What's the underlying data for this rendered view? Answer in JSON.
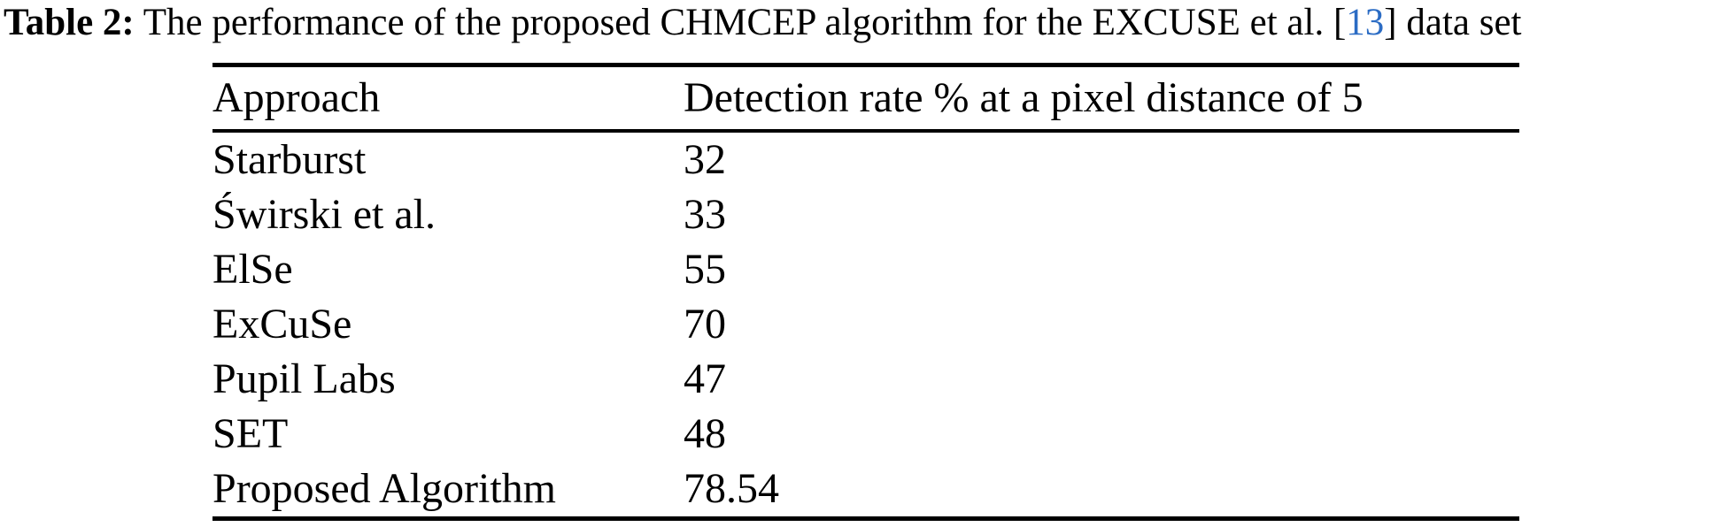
{
  "colors": {
    "background": "#ffffff",
    "text": "#000000",
    "rule": "#000000",
    "citation_link": "#2b6cc4"
  },
  "caption": {
    "label": "Table 2:",
    "body": " The performance of the proposed CHMCEP algorithm for the EXCUSE et al. ",
    "bracket_open": "[",
    "citation_number": "13",
    "bracket_close": "]",
    "tail": " data set"
  },
  "table": {
    "header": {
      "approach": "Approach",
      "rate": "Detection rate % at a pixel distance of 5"
    },
    "rows": [
      {
        "approach": "Starburst",
        "rate": "32"
      },
      {
        "approach": "Świrski et al.",
        "rate": "33"
      },
      {
        "approach": "ElSe",
        "rate": "55"
      },
      {
        "approach": "ExCuSe",
        "rate": "70"
      },
      {
        "approach": "Pupil Labs",
        "rate": "47"
      },
      {
        "approach": "SET",
        "rate": "48"
      },
      {
        "approach": "Proposed Algorithm",
        "rate": "78.54"
      }
    ]
  },
  "chart_data": {
    "type": "table",
    "title": "Table 2: The performance of the proposed CHMCEP algorithm for the EXCUSE et al. [13] data set",
    "columns": [
      "Approach",
      "Detection rate % at a pixel distance of 5"
    ],
    "categories": [
      "Starburst",
      "Świrski et al.",
      "ElSe",
      "ExCuSe",
      "Pupil Labs",
      "SET",
      "Proposed Algorithm"
    ],
    "values": [
      32,
      33,
      55,
      70,
      47,
      48,
      78.54
    ]
  }
}
